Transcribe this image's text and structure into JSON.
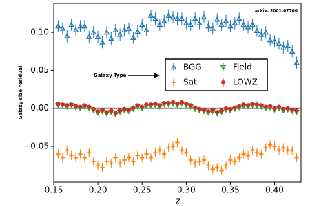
{
  "chart_data": {
    "type": "errorbar",
    "annotations": [
      "arXiv: 2001.07700",
      "Galaxy Type"
    ],
    "xlabel": "z",
    "ylabel": "Galaxy size residual",
    "x": [
      0.155,
      0.16,
      0.165,
      0.17,
      0.175,
      0.18,
      0.185,
      0.19,
      0.195,
      0.2,
      0.205,
      0.21,
      0.215,
      0.22,
      0.225,
      0.23,
      0.235,
      0.24,
      0.245,
      0.25,
      0.255,
      0.26,
      0.265,
      0.27,
      0.275,
      0.28,
      0.285,
      0.29,
      0.295,
      0.3,
      0.305,
      0.31,
      0.315,
      0.32,
      0.325,
      0.33,
      0.335,
      0.34,
      0.345,
      0.35,
      0.355,
      0.36,
      0.365,
      0.37,
      0.375,
      0.38,
      0.385,
      0.39,
      0.395,
      0.4,
      0.405,
      0.41,
      0.415,
      0.42,
      0.425
    ],
    "series": [
      {
        "name": "BGG",
        "color": "#1f77b4",
        "marker": "triangle-up",
        "yerr": 0.008,
        "values": [
          0.108,
          0.105,
          0.095,
          0.11,
          0.103,
          0.108,
          0.108,
          0.094,
          0.1,
          0.094,
          0.087,
          0.1,
          0.092,
          0.103,
          0.097,
          0.103,
          0.105,
          0.093,
          0.101,
          0.11,
          0.103,
          0.122,
          0.118,
          0.11,
          0.115,
          0.122,
          0.12,
          0.118,
          0.118,
          0.112,
          0.11,
          0.118,
          0.112,
          0.12,
          0.108,
          0.105,
          0.117,
          0.11,
          0.115,
          0.108,
          0.112,
          0.118,
          0.11,
          0.107,
          0.11,
          0.102,
          0.097,
          0.1,
          0.09,
          0.088,
          0.085,
          0.08,
          0.082,
          0.075,
          0.06
        ]
      },
      {
        "name": "Sat",
        "color": "#ff7f0e",
        "marker": "plus",
        "yerr": 0.006,
        "values": [
          -0.06,
          -0.065,
          -0.055,
          -0.062,
          -0.065,
          -0.06,
          -0.065,
          -0.058,
          -0.07,
          -0.075,
          -0.078,
          -0.07,
          -0.072,
          -0.065,
          -0.072,
          -0.068,
          -0.065,
          -0.07,
          -0.062,
          -0.065,
          -0.06,
          -0.065,
          -0.058,
          -0.055,
          -0.06,
          -0.052,
          -0.05,
          -0.045,
          -0.055,
          -0.058,
          -0.068,
          -0.072,
          -0.07,
          -0.068,
          -0.075,
          -0.08,
          -0.078,
          -0.082,
          -0.075,
          -0.068,
          -0.07,
          -0.065,
          -0.06,
          -0.062,
          -0.055,
          -0.058,
          -0.06,
          -0.052,
          -0.048,
          -0.05,
          -0.055,
          -0.052,
          -0.055,
          -0.055,
          -0.065
        ]
      },
      {
        "name": "Field",
        "color": "#2ca02c",
        "marker": "triangle-down",
        "yerr": 0.002,
        "values": [
          0.004,
          0.004,
          0.002,
          0.004,
          0.001,
          0,
          0.002,
          0,
          -0.003,
          -0.006,
          -0.004,
          -0.007,
          -0.005,
          -0.008,
          -0.005,
          -0.003,
          -0.004,
          -0.001,
          0.002,
          0,
          0.003,
          0.003,
          0.004,
          0.002,
          0.005,
          0.005,
          0.006,
          0.004,
          0.006,
          0.004,
          0.002,
          -0.001,
          -0.003,
          -0.004,
          -0.006,
          -0.004,
          -0.007,
          -0.005,
          -0.002,
          -0.003,
          -0.001,
          0.001,
          0.003,
          0.002,
          0.004,
          0.003,
          0.002,
          0,
          0.001,
          -0.002,
          0,
          -0.003,
          -0.002,
          -0.004,
          -0.005
        ]
      },
      {
        "name": "LOWZ",
        "color": "#d62728",
        "marker": "circle",
        "yerr": 0.002,
        "values": [
          0.006,
          0.005,
          0.004,
          0.005,
          0.003,
          0.002,
          0.004,
          0.002,
          -0.001,
          -0.004,
          -0.002,
          -0.005,
          -0.003,
          -0.006,
          -0.003,
          -0.001,
          -0.002,
          0.001,
          0.004,
          0.002,
          0.005,
          0.005,
          0.006,
          0.004,
          0.007,
          0.007,
          0.008,
          0.006,
          0.008,
          0.006,
          0.004,
          0.001,
          -0.001,
          -0.002,
          -0.004,
          -0.002,
          -0.005,
          -0.003,
          0,
          -0.001,
          0.001,
          0.003,
          0.005,
          0.004,
          0.006,
          0.005,
          0.004,
          0.002,
          0.003,
          0,
          0.002,
          -0.001,
          0,
          -0.002,
          -0.003
        ]
      }
    ],
    "xlim": [
      0.15,
      0.43
    ],
    "ylim": [
      -0.097,
      0.138
    ],
    "xticks": [
      {
        "value": 0.15,
        "label": "0.15"
      },
      {
        "value": 0.2,
        "label": "0.20"
      },
      {
        "value": 0.25,
        "label": "0.25"
      },
      {
        "value": 0.3,
        "label": "0.30"
      },
      {
        "value": 0.35,
        "label": "0.35"
      },
      {
        "value": 0.4,
        "label": "0.40"
      }
    ],
    "yticks": [
      {
        "value": -0.05,
        "label": "−0.05"
      },
      {
        "value": 0,
        "label": "0.00"
      },
      {
        "value": 0.05,
        "label": "0.05"
      },
      {
        "value": 0.1,
        "label": "0.10"
      }
    ],
    "reference_line": 0,
    "legend": true,
    "grid": false
  }
}
